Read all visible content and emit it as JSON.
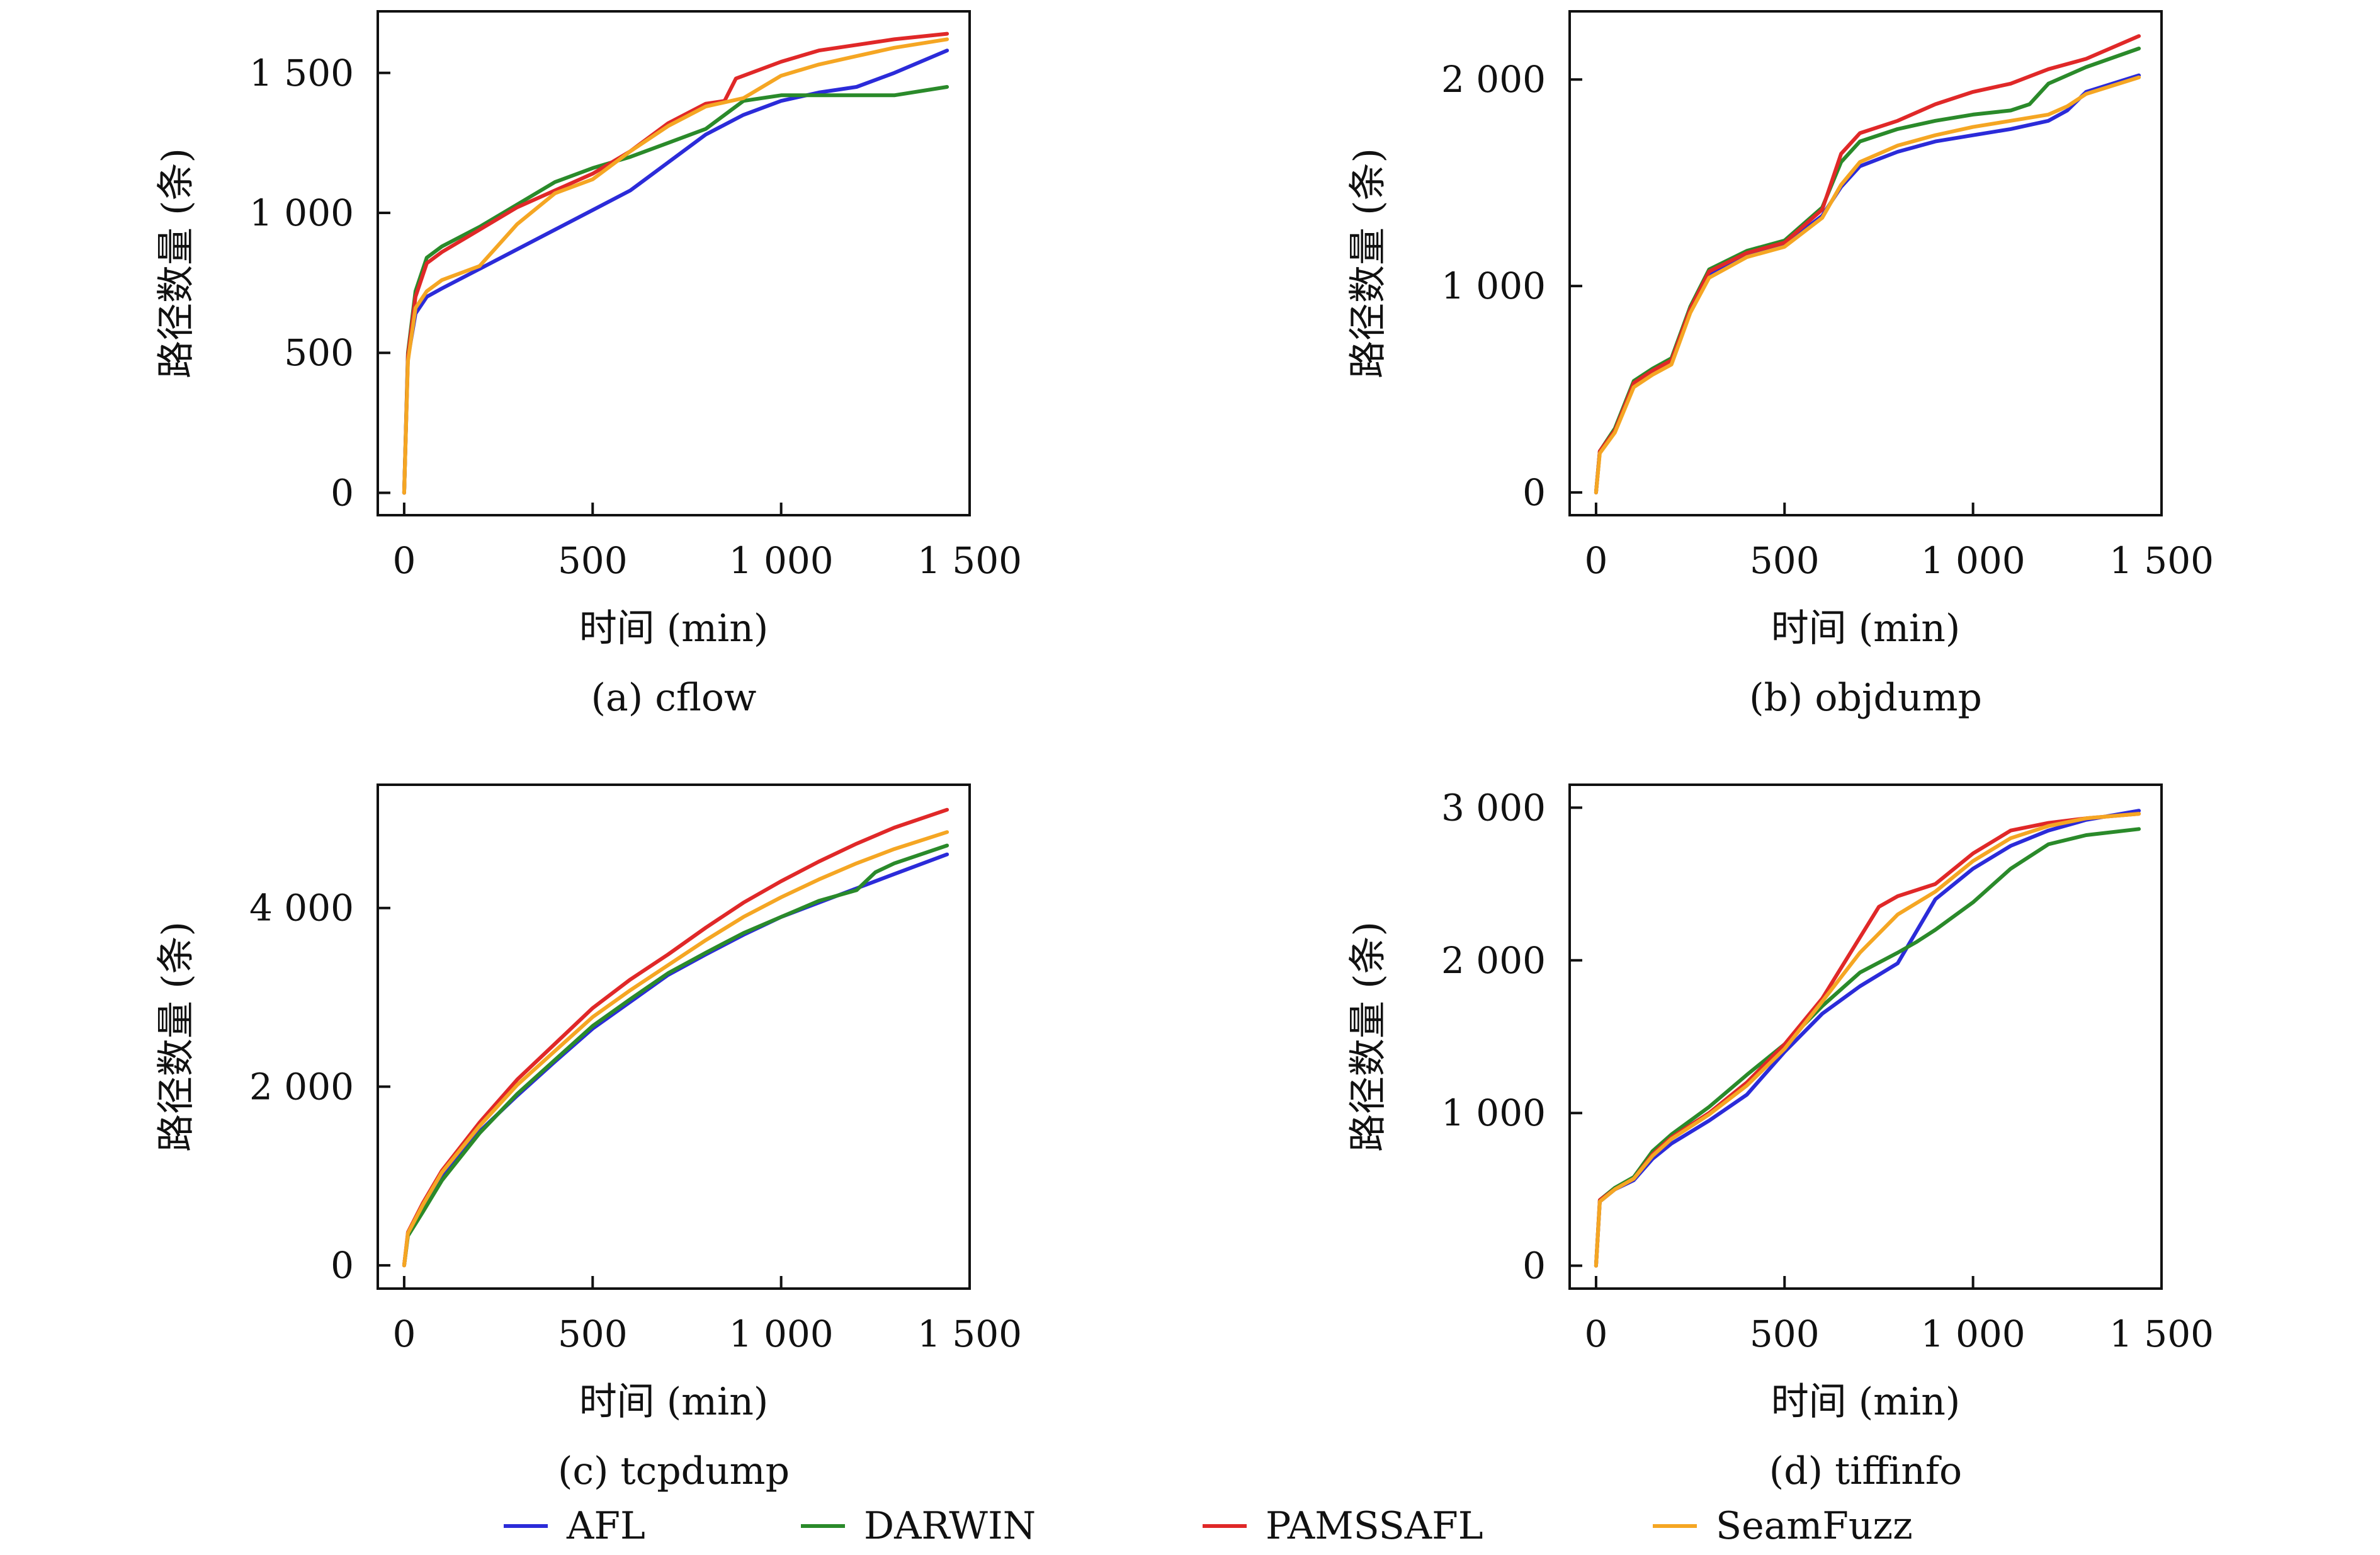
{
  "colors": {
    "AFL": "#2b2bd9",
    "DARWIN": "#2a8a2a",
    "PAMSSAFL": "#e02828",
    "SeamFuzz": "#f5a623"
  },
  "legend": [
    "AFL",
    "DARWIN",
    "PAMSSAFL",
    "SeamFuzz"
  ],
  "chart_data": [
    {
      "type": "line",
      "caption": "(a) cflow",
      "xlabel": "时间 (min)",
      "ylabel": "路径数量 (条)",
      "xlim": [
        -70,
        1500
      ],
      "ylim": [
        -80,
        1720
      ],
      "xticks": [
        0,
        500,
        1000,
        1500
      ],
      "yticks": [
        0,
        500,
        1000,
        1500
      ],
      "xtick_labels": [
        "0",
        "500",
        "1 000",
        "1 500"
      ],
      "ytick_labels": [
        "0",
        "500",
        "1 000",
        "1 500"
      ],
      "series": [
        {
          "name": "AFL",
          "x": [
            0,
            10,
            30,
            60,
            100,
            200,
            300,
            400,
            500,
            600,
            700,
            800,
            900,
            1000,
            1100,
            1200,
            1300,
            1440
          ],
          "y": [
            0,
            480,
            640,
            700,
            730,
            800,
            870,
            940,
            1010,
            1080,
            1180,
            1280,
            1350,
            1400,
            1430,
            1450,
            1500,
            1580
          ]
        },
        {
          "name": "DARWIN",
          "x": [
            0,
            10,
            30,
            60,
            100,
            200,
            300,
            400,
            500,
            600,
            700,
            800,
            900,
            1000,
            1100,
            1200,
            1300,
            1440
          ],
          "y": [
            0,
            500,
            720,
            840,
            880,
            950,
            1030,
            1110,
            1160,
            1200,
            1250,
            1300,
            1400,
            1420,
            1420,
            1420,
            1420,
            1450
          ]
        },
        {
          "name": "PAMSSAFL",
          "x": [
            0,
            10,
            30,
            60,
            100,
            200,
            300,
            400,
            500,
            600,
            700,
            800,
            850,
            880,
            1000,
            1100,
            1200,
            1300,
            1440
          ],
          "y": [
            0,
            490,
            700,
            820,
            860,
            940,
            1020,
            1080,
            1140,
            1220,
            1320,
            1390,
            1400,
            1480,
            1540,
            1580,
            1600,
            1620,
            1640
          ]
        },
        {
          "name": "SeamFuzz",
          "x": [
            0,
            10,
            30,
            60,
            100,
            200,
            300,
            400,
            500,
            600,
            700,
            800,
            900,
            1000,
            1100,
            1200,
            1300,
            1440
          ],
          "y": [
            0,
            470,
            660,
            720,
            760,
            810,
            960,
            1070,
            1120,
            1220,
            1310,
            1380,
            1410,
            1490,
            1530,
            1560,
            1590,
            1620
          ]
        }
      ]
    },
    {
      "type": "line",
      "caption": "(b) objdump",
      "xlabel": "时间 (min)",
      "ylabel": "路径数量 (条)",
      "xlim": [
        -70,
        1500
      ],
      "ylim": [
        -110,
        2330
      ],
      "xticks": [
        0,
        500,
        1000,
        1500
      ],
      "yticks": [
        0,
        1000,
        2000
      ],
      "xtick_labels": [
        "0",
        "500",
        "1 000",
        "1 500"
      ],
      "ytick_labels": [
        "0",
        "1 000",
        "2 000"
      ],
      "series": [
        {
          "name": "AFL",
          "x": [
            0,
            10,
            50,
            100,
            150,
            200,
            250,
            300,
            400,
            500,
            600,
            650,
            700,
            800,
            900,
            1000,
            1100,
            1200,
            1250,
            1300,
            1440
          ],
          "y": [
            0,
            200,
            300,
            520,
            580,
            630,
            880,
            1050,
            1150,
            1200,
            1340,
            1480,
            1580,
            1650,
            1700,
            1730,
            1760,
            1800,
            1850,
            1940,
            2020
          ]
        },
        {
          "name": "DARWIN",
          "x": [
            0,
            10,
            50,
            100,
            150,
            200,
            250,
            300,
            400,
            500,
            600,
            650,
            700,
            800,
            900,
            1000,
            1100,
            1150,
            1200,
            1300,
            1440
          ],
          "y": [
            0,
            200,
            310,
            540,
            600,
            650,
            900,
            1080,
            1170,
            1220,
            1380,
            1600,
            1700,
            1760,
            1800,
            1830,
            1850,
            1880,
            1980,
            2060,
            2150
          ]
        },
        {
          "name": "PAMSSAFL",
          "x": [
            0,
            10,
            50,
            100,
            150,
            200,
            250,
            300,
            400,
            500,
            600,
            650,
            700,
            800,
            900,
            1000,
            1100,
            1200,
            1300,
            1440
          ],
          "y": [
            0,
            200,
            300,
            530,
            590,
            640,
            890,
            1070,
            1160,
            1210,
            1370,
            1640,
            1740,
            1800,
            1880,
            1940,
            1980,
            2050,
            2100,
            2210
          ]
        },
        {
          "name": "SeamFuzz",
          "x": [
            0,
            10,
            50,
            100,
            150,
            200,
            250,
            300,
            400,
            500,
            600,
            650,
            700,
            800,
            900,
            1000,
            1100,
            1200,
            1250,
            1300,
            1440
          ],
          "y": [
            0,
            190,
            290,
            510,
            570,
            620,
            870,
            1040,
            1140,
            1190,
            1330,
            1490,
            1600,
            1680,
            1730,
            1770,
            1800,
            1830,
            1870,
            1930,
            2010
          ]
        }
      ]
    },
    {
      "type": "line",
      "caption": "(c) tcpdump",
      "xlabel": "时间 (min)",
      "ylabel": "路径数量 (条)",
      "xlim": [
        -70,
        1500
      ],
      "ylim": [
        -260,
        5380
      ],
      "xticks": [
        0,
        500,
        1000,
        1500
      ],
      "yticks": [
        0,
        2000,
        4000
      ],
      "xtick_labels": [
        "0",
        "500",
        "1 000",
        "1 500"
      ],
      "ytick_labels": [
        "0",
        "2 000",
        "4 000"
      ],
      "series": [
        {
          "name": "AFL",
          "x": [
            0,
            10,
            50,
            100,
            200,
            300,
            400,
            500,
            600,
            700,
            800,
            900,
            1000,
            1100,
            1200,
            1300,
            1440
          ],
          "y": [
            0,
            350,
            650,
            1000,
            1500,
            1900,
            2280,
            2650,
            2950,
            3250,
            3480,
            3700,
            3900,
            4060,
            4220,
            4380,
            4600
          ]
        },
        {
          "name": "DARWIN",
          "x": [
            0,
            10,
            50,
            100,
            200,
            300,
            400,
            500,
            600,
            700,
            800,
            900,
            1000,
            1100,
            1200,
            1250,
            1300,
            1440
          ],
          "y": [
            0,
            330,
            600,
            950,
            1480,
            1920,
            2300,
            2680,
            2980,
            3270,
            3500,
            3720,
            3900,
            4080,
            4200,
            4400,
            4500,
            4700
          ]
        },
        {
          "name": "PAMSSAFL",
          "x": [
            0,
            10,
            50,
            100,
            200,
            300,
            400,
            500,
            600,
            700,
            800,
            900,
            1000,
            1100,
            1200,
            1300,
            1440
          ],
          "y": [
            0,
            370,
            700,
            1060,
            1600,
            2080,
            2480,
            2880,
            3200,
            3480,
            3780,
            4060,
            4300,
            4520,
            4720,
            4900,
            5100
          ]
        },
        {
          "name": "SeamFuzz",
          "x": [
            0,
            10,
            50,
            100,
            200,
            300,
            400,
            500,
            600,
            700,
            800,
            900,
            1000,
            1100,
            1200,
            1300,
            1440
          ],
          "y": [
            0,
            360,
            680,
            1040,
            1560,
            2020,
            2400,
            2780,
            3080,
            3360,
            3640,
            3900,
            4120,
            4320,
            4500,
            4660,
            4850
          ]
        }
      ]
    },
    {
      "type": "line",
      "caption": "(d) tiffinfo",
      "xlabel": "时间 (min)",
      "ylabel": "路径数量 (条)",
      "xlim": [
        -70,
        1500
      ],
      "ylim": [
        -150,
        3150
      ],
      "xticks": [
        0,
        500,
        1000,
        1500
      ],
      "yticks": [
        0,
        1000,
        2000,
        3000
      ],
      "xtick_labels": [
        "0",
        "500",
        "1 000",
        "1 500"
      ],
      "ytick_labels": [
        "0",
        "1 000",
        "2 000",
        "3 000"
      ],
      "series": [
        {
          "name": "AFL",
          "x": [
            0,
            10,
            50,
            100,
            150,
            200,
            300,
            400,
            500,
            600,
            700,
            800,
            900,
            1000,
            1100,
            1200,
            1300,
            1440
          ],
          "y": [
            0,
            420,
            500,
            560,
            700,
            800,
            950,
            1120,
            1400,
            1650,
            1830,
            1980,
            2400,
            2600,
            2750,
            2850,
            2920,
            2980
          ]
        },
        {
          "name": "DARWIN",
          "x": [
            0,
            10,
            50,
            100,
            150,
            200,
            300,
            400,
            500,
            600,
            700,
            800,
            850,
            900,
            1000,
            1100,
            1200,
            1300,
            1440
          ],
          "y": [
            0,
            430,
            510,
            580,
            750,
            860,
            1040,
            1250,
            1450,
            1700,
            1920,
            2050,
            2120,
            2200,
            2380,
            2600,
            2760,
            2820,
            2860
          ]
        },
        {
          "name": "PAMSSAFL",
          "x": [
            0,
            10,
            50,
            100,
            150,
            200,
            300,
            400,
            500,
            600,
            700,
            750,
            800,
            900,
            1000,
            1100,
            1200,
            1300,
            1440
          ],
          "y": [
            0,
            430,
            500,
            570,
            730,
            840,
            1000,
            1200,
            1450,
            1750,
            2150,
            2350,
            2420,
            2500,
            2700,
            2850,
            2900,
            2930,
            2960
          ]
        },
        {
          "name": "SeamFuzz",
          "x": [
            0,
            10,
            50,
            100,
            150,
            200,
            300,
            400,
            500,
            600,
            700,
            800,
            900,
            1000,
            1100,
            1200,
            1300,
            1440
          ],
          "y": [
            0,
            420,
            500,
            570,
            720,
            830,
            990,
            1180,
            1420,
            1730,
            2050,
            2300,
            2450,
            2650,
            2800,
            2880,
            2930,
            2960
          ]
        }
      ]
    }
  ]
}
